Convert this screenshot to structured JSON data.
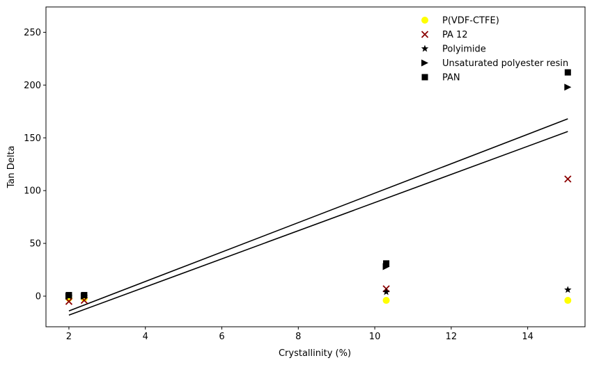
{
  "chart_data": {
    "type": "scatter",
    "title": "",
    "xlabel": "Crystallinity (%)",
    "ylabel": "Tan Delta",
    "xlim": [
      1.4,
      15.5
    ],
    "ylim": [
      -29,
      274
    ],
    "xticks": [
      2,
      4,
      6,
      8,
      10,
      12,
      14
    ],
    "yticks": [
      0,
      50,
      100,
      150,
      200,
      250
    ],
    "grid": false,
    "legend_position": "top-right",
    "series": [
      {
        "name": "P(VDF-CTFE)",
        "marker": "circle",
        "color": "#ffff00",
        "points": [
          [
            2.0,
            -2
          ],
          [
            2.4,
            -2
          ],
          [
            10.3,
            -4
          ],
          [
            15.05,
            -4
          ]
        ]
      },
      {
        "name": "PA 12",
        "marker": "x",
        "color": "#8b0000",
        "points": [
          [
            2.0,
            -5
          ],
          [
            2.4,
            -4
          ],
          [
            10.3,
            7
          ],
          [
            15.05,
            111
          ]
        ]
      },
      {
        "name": "Polyimide",
        "marker": "star",
        "color": "#000000",
        "points": [
          [
            2.0,
            0
          ],
          [
            2.4,
            0
          ],
          [
            10.3,
            4
          ],
          [
            15.05,
            6
          ]
        ]
      },
      {
        "name": "Unsaturated polyester resin",
        "marker": "triangle-right",
        "color": "#000000",
        "points": [
          [
            2.0,
            0
          ],
          [
            2.4,
            0
          ],
          [
            10.3,
            28
          ],
          [
            15.05,
            198
          ]
        ]
      },
      {
        "name": "PAN",
        "marker": "square",
        "color": "#000000",
        "points": [
          [
            2.0,
            1
          ],
          [
            2.4,
            1
          ],
          [
            10.3,
            31
          ],
          [
            15.05,
            212
          ]
        ]
      }
    ],
    "fit_lines": [
      {
        "color": "#000000",
        "points": [
          [
            2.0,
            -14
          ],
          [
            15.05,
            168
          ]
        ]
      },
      {
        "color": "#000000",
        "points": [
          [
            2.0,
            -18
          ],
          [
            15.05,
            156
          ]
        ]
      }
    ]
  }
}
